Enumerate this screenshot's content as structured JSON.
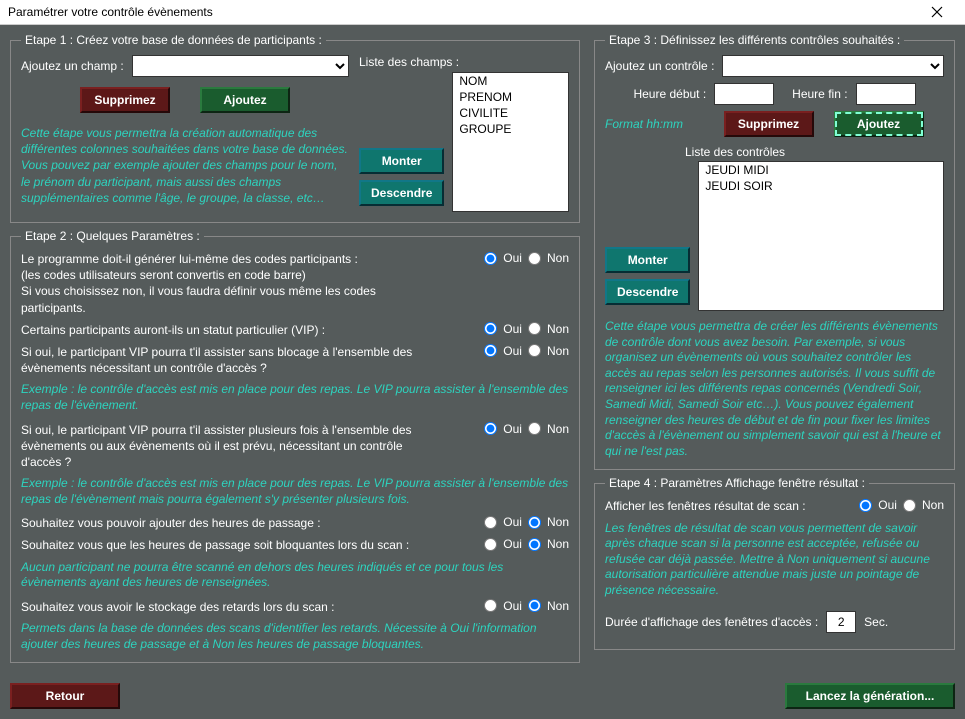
{
  "window": {
    "title": "Paramétrer votre contrôle évènements"
  },
  "step1": {
    "legend": "Etape 1 : Créez votre base de données de participants :",
    "add_field_label": "Ajoutez un champ :",
    "delete_btn": "Supprimez",
    "add_btn": "Ajoutez",
    "list_label": "Liste des champs :",
    "fields": [
      "NOM",
      "PRENOM",
      "CIVILITE",
      "GROUPE"
    ],
    "up_btn": "Monter",
    "down_btn": "Descendre",
    "help": "Cette étape vous permettra la création automatique des différentes colonnes souhaitées dans votre base de données. Vous pouvez par exemple ajouter des champs pour le nom, le prénom du participant, mais aussi des champs supplémentaires comme l'âge, le groupe, la classe, etc…"
  },
  "step2": {
    "legend": "Etape 2 : Quelques Paramètres :",
    "yes": "Oui",
    "no": "Non",
    "q1a": "Le programme doit-il générer lui-même des codes participants :",
    "q1b": "(les codes utilisateurs seront convertis en code barre)",
    "q1c": "Si vous choisissez non, il vous faudra définir vous même les codes participants.",
    "q2": "Certains participants auront-ils un statut particulier (VIP) :",
    "q3": "Si oui, le participant VIP pourra t'il assister sans blocage à l'ensemble des évènements nécessitant un contrôle d'accès ?",
    "q3_ex": "Exemple : le contrôle d'accès est mis en place pour des repas. Le VIP pourra assister à l'ensemble des repas de l'évènement.",
    "q4": "Si oui, le participant VIP pourra t'il assister plusieurs fois à l'ensemble des évènements ou aux évènements où il est prévu, nécessitant un contrôle d'accès ?",
    "q4_ex": "Exemple : le contrôle d'accès est mis en place pour des repas. Le VIP pourra assister à l'ensemble des repas de l'évènement mais pourra également s'y présenter plusieurs fois.",
    "q5": "Souhaitez vous pouvoir ajouter des heures de passage :",
    "q6": "Souhaitez vous que les heures de passage soit bloquantes lors du scan :",
    "q6_ex": "Aucun participant ne pourra être scanné en dehors des heures indiqués et ce pour tous les évènements ayant des heures de renseignées.",
    "q7": "Souhaitez vous avoir le stockage des retards lors du scan :",
    "q7_ex": "Permets dans la base de données des scans d'identifier les retards. Nécessite à Oui l'information ajouter des heures de passage et à Non les heures de passage bloquantes."
  },
  "step3": {
    "legend": "Etape 3 : Définissez les différents contrôles souhaités :",
    "add_control_label": "Ajoutez un contrôle :",
    "start_label": "Heure début :",
    "end_label": "Heure fin :",
    "format": "Format hh:mm",
    "delete_btn": "Supprimez",
    "add_btn": "Ajoutez",
    "list_label": "Liste des contrôles",
    "controls": [
      "JEUDI MIDI",
      "JEUDI SOIR"
    ],
    "up_btn": "Monter",
    "down_btn": "Descendre",
    "help": "Cette étape vous permettra de créer les différents évènements de contrôle dont vous avez besoin. Par exemple, si vous organisez un évènements où vous souhaitez contrôler les accès au repas selon les personnes autorisés. Il vous suffit de renseigner ici les différents repas concernés (Vendredi Soir, Samedi Midi, Samedi Soir etc…). Vous pouvez également renseigner des heures de début et de fin pour fixer les limites d'accès à l'évènement ou simplement savoir qui est à l'heure et qui ne l'est pas."
  },
  "step4": {
    "legend": "Etape 4 : Paramètres Affichage fenêtre résultat :",
    "show_label": "Afficher les fenêtres résultat de scan :",
    "help": "Les fenêtres de résultat de scan vous permettent de savoir après chaque scan si la personne est acceptée, refusée ou refusée car déjà passée. Mettre à Non uniquement si aucune autorisation particulière attendue mais juste un pointage de présence nécessaire.",
    "duration_label": "Durée d'affichage des fenêtres d'accès :",
    "duration_value": "2",
    "duration_unit": "Sec.",
    "yes": "Oui",
    "no": "Non"
  },
  "bottom": {
    "back": "Retour",
    "generate": "Lancez la génération..."
  }
}
